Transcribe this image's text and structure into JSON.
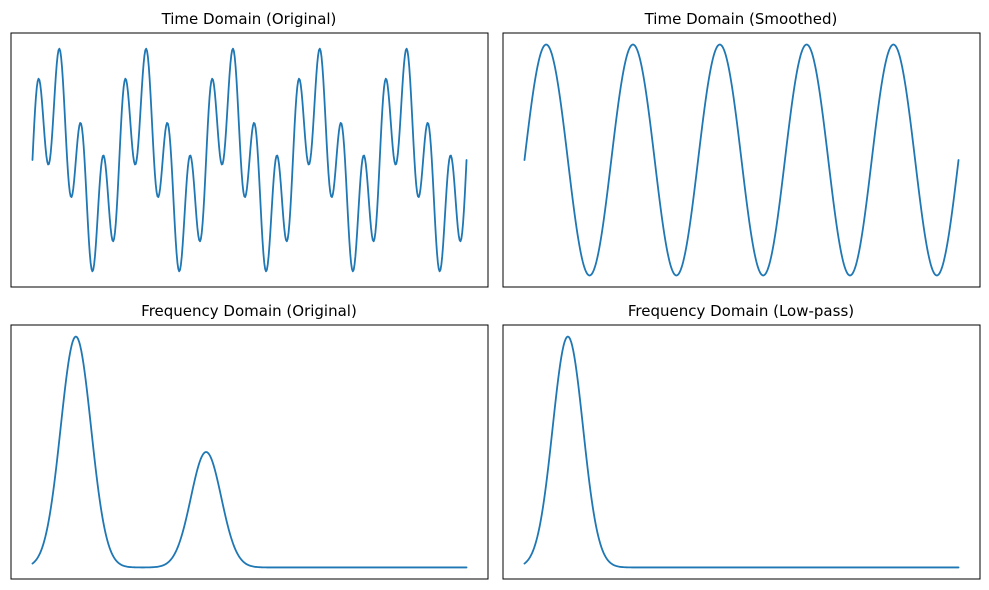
{
  "chart_data": [
    {
      "type": "line",
      "title": "Time Domain (Original)",
      "xlabel": "",
      "ylabel": "",
      "grid": false,
      "axes_visible": false,
      "x": {
        "start": 0,
        "end": 1,
        "points": 501
      },
      "ylim": [
        -2.2,
        2.2
      ],
      "series": [
        {
          "components": [
            {
              "amplitude": 1,
              "cycles": 5
            },
            {
              "amplitude": 1,
              "cycles": 20
            }
          ]
        }
      ],
      "color": "#1f77b4"
    },
    {
      "type": "line",
      "title": "Time Domain (Smoothed)",
      "xlabel": "",
      "ylabel": "",
      "grid": false,
      "axes_visible": false,
      "x": {
        "start": 0,
        "end": 1,
        "points": 501
      },
      "ylim": [
        -1.1,
        1.1
      ],
      "series": [
        {
          "components": [
            {
              "amplitude": 1,
              "cycles": 5
            }
          ]
        }
      ],
      "color": "#1f77b4"
    },
    {
      "type": "line",
      "title": "Frequency Domain (Original)",
      "xlabel": "",
      "ylabel": "",
      "grid": false,
      "axes_visible": false,
      "x": {
        "start": 0,
        "end": 1,
        "points": 401
      },
      "ylim": [
        -0.05,
        1.05
      ],
      "series": [
        {
          "peaks": [
            {
              "center": 0.1,
              "height": 1.0,
              "width": 0.035
            },
            {
              "center": 0.4,
              "height": 0.5,
              "width": 0.035
            }
          ]
        }
      ],
      "color": "#1f77b4"
    },
    {
      "type": "line",
      "title": "Frequency Domain (Low-pass)",
      "xlabel": "",
      "ylabel": "",
      "grid": false,
      "axes_visible": false,
      "x": {
        "start": 0,
        "end": 1,
        "points": 401
      },
      "ylim": [
        -0.05,
        1.05
      ],
      "series": [
        {
          "peaks": [
            {
              "center": 0.1,
              "height": 1.0,
              "width": 0.035
            }
          ]
        }
      ],
      "color": "#1f77b4"
    }
  ]
}
